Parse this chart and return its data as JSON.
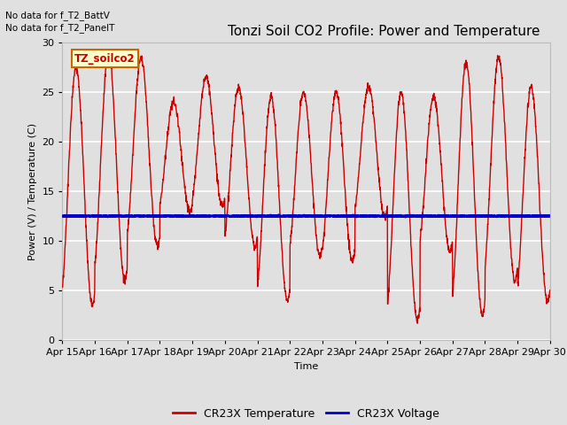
{
  "title": "Tonzi Soil CO2 Profile: Power and Temperature",
  "xlabel": "Time",
  "ylabel": "Power (V) / Temperature (C)",
  "no_data_text_1": "No data for f_T2_BattV",
  "no_data_text_2": "No data for f_T2_PanelT",
  "legend_label_text": "TZ_soilco2",
  "legend_label_color": "#cc0000",
  "legend_label_bg": "#ffffcc",
  "legend_label_border": "#cc6600",
  "ylim": [
    0,
    30
  ],
  "yticks": [
    0,
    5,
    10,
    15,
    20,
    25,
    30
  ],
  "x_tick_labels": [
    "Apr 15",
    "Apr 16",
    "Apr 17",
    "Apr 18",
    "Apr 19",
    "Apr 20",
    "Apr 21",
    "Apr 22",
    "Apr 23",
    "Apr 24",
    "Apr 25",
    "Apr 26",
    "Apr 27",
    "Apr 28",
    "Apr 29",
    "Apr 30"
  ],
  "bg_color": "#e0e0e0",
  "plot_bg_color": "#e0e0e0",
  "grid_color": "#ffffff",
  "temp_color": "#cc0000",
  "voltage_color": "#0000cc",
  "temp_linewidth": 1.0,
  "voltage_linewidth": 2.0,
  "voltage_value": 12.5,
  "title_fontsize": 11,
  "axis_fontsize": 8,
  "tick_fontsize": 8
}
